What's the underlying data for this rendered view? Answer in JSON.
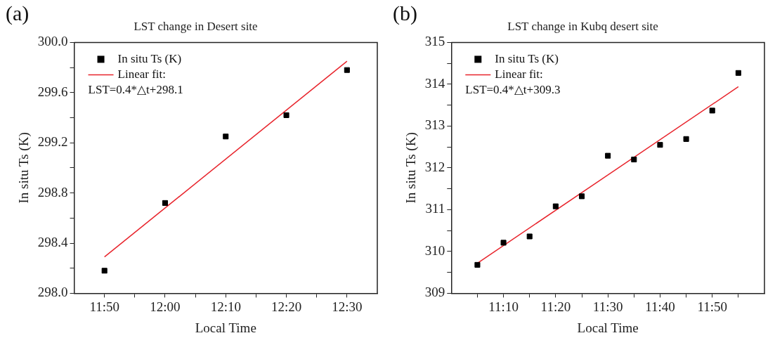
{
  "chart_data": [
    {
      "type": "scatter",
      "title": "LST change in Desert site",
      "xlabel": "Local Time",
      "ylabel": "In situ Ts (K)",
      "annotations": [
        "(a)",
        "LST=0.4*△t+298.1"
      ],
      "series": [
        {
          "name": "In situ Ts (K)",
          "color": "#000000",
          "marker": "square",
          "x": [
            11.833333,
            12.0,
            12.166667,
            12.333333,
            12.5
          ],
          "values": [
            298.18,
            298.72,
            299.25,
            299.42,
            299.78
          ]
        },
        {
          "name": "Linear fit:",
          "type": "line",
          "color": "#e8242c",
          "marker": "none",
          "line_style": "solid",
          "x": [
            11.833333,
            12.5
          ],
          "values": [
            298.29,
            299.85
          ]
        }
      ],
      "xlim": [
        11.75,
        12.583333
      ],
      "xticks": [
        {
          "value": 11.833333,
          "label": "11:50"
        },
        {
          "value": 11.916667,
          "label": null
        },
        {
          "value": 12.0,
          "label": "12:00"
        },
        {
          "value": 12.083333,
          "label": null
        },
        {
          "value": 12.166667,
          "label": "12:10"
        },
        {
          "value": 12.25,
          "label": null
        },
        {
          "value": 12.333333,
          "label": "12:20"
        },
        {
          "value": 12.416667,
          "label": null
        },
        {
          "value": 12.5,
          "label": "12:30"
        }
      ],
      "ylim": [
        298.0,
        300.0
      ],
      "yticks": [
        {
          "value": 298.0,
          "label": "298.0"
        },
        {
          "value": 298.2,
          "label": null
        },
        {
          "value": 298.4,
          "label": "298.4"
        },
        {
          "value": 298.6,
          "label": null
        },
        {
          "value": 298.8,
          "label": "298.8"
        },
        {
          "value": 299.0,
          "label": null
        },
        {
          "value": 299.2,
          "label": "299.2"
        },
        {
          "value": 299.4,
          "label": null
        },
        {
          "value": 299.6,
          "label": "299.6"
        },
        {
          "value": 299.8,
          "label": null
        },
        {
          "value": 300.0,
          "label": "300.0"
        }
      ],
      "grid": false,
      "legend": "top left"
    },
    {
      "type": "scatter",
      "title": "LST change in Kubq desert site",
      "xlabel": "Local Time",
      "ylabel": "In situ Ts (K)",
      "annotations": [
        "(b)",
        "LST=0.4*△t+309.3"
      ],
      "series": [
        {
          "name": "In situ Ts (K)",
          "color": "#000000",
          "marker": "square",
          "x": [
            11.083333,
            11.166667,
            11.25,
            11.333333,
            11.416667,
            11.5,
            11.583333,
            11.666667,
            11.75,
            11.833333,
            11.916667
          ],
          "values": [
            309.68,
            310.21,
            310.36,
            311.08,
            311.32,
            312.29,
            312.2,
            312.55,
            312.69,
            313.37,
            314.27
          ]
        },
        {
          "name": "Linear fit:",
          "type": "line",
          "color": "#e8242c",
          "marker": "none",
          "line_style": "solid",
          "x": [
            11.083333,
            11.916667
          ],
          "values": [
            309.72,
            313.94
          ]
        }
      ],
      "xlim": [
        11.0,
        12.0
      ],
      "xticks": [
        {
          "value": 11.083333,
          "label": null
        },
        {
          "value": 11.166667,
          "label": "11:10"
        },
        {
          "value": 11.25,
          "label": null
        },
        {
          "value": 11.333333,
          "label": "11:20"
        },
        {
          "value": 11.416667,
          "label": null
        },
        {
          "value": 11.5,
          "label": "11:30"
        },
        {
          "value": 11.583333,
          "label": null
        },
        {
          "value": 11.666667,
          "label": "11:40"
        },
        {
          "value": 11.75,
          "label": null
        },
        {
          "value": 11.833333,
          "label": "11:50"
        },
        {
          "value": 11.916667,
          "label": null
        }
      ],
      "ylim": [
        309,
        315
      ],
      "yticks": [
        309,
        {
          "value": 309.5,
          "label": null
        },
        310,
        {
          "value": 310.5,
          "label": null
        },
        311,
        {
          "value": 311.5,
          "label": null
        },
        312,
        {
          "value": 312.5,
          "label": null
        },
        313,
        {
          "value": 313.5,
          "label": null
        },
        314,
        {
          "value": 314.5,
          "label": null
        },
        315
      ],
      "grid": false,
      "legend": "top left"
    }
  ]
}
